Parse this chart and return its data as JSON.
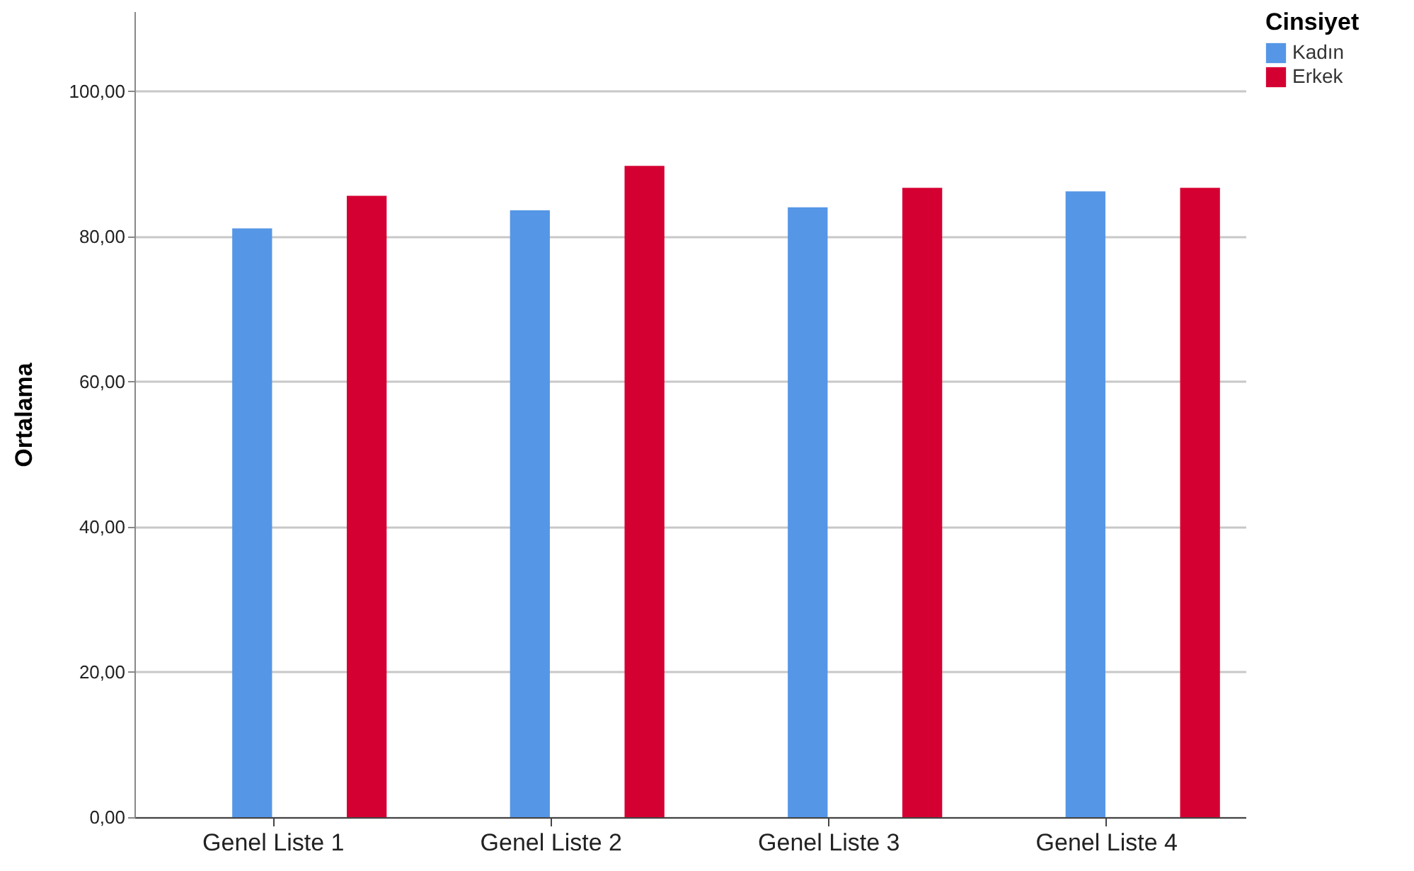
{
  "chart_data": {
    "type": "bar",
    "ylabel": "Ortalama",
    "legend_title": "Cinsiyet",
    "categories": [
      "Genel Liste 1",
      "Genel Liste 2",
      "Genel Liste 3",
      "Genel Liste 4"
    ],
    "series": [
      {
        "name": "Kadın",
        "color": "#5596e6",
        "values": [
          81.1,
          83.6,
          84.0,
          86.2
        ]
      },
      {
        "name": "Erkek",
        "color": "#d50032",
        "values": [
          85.6,
          89.7,
          86.7,
          86.7
        ]
      }
    ],
    "ylim": [
      0,
      111
    ],
    "yticks": [
      {
        "value": 0,
        "label": "0,00"
      },
      {
        "value": 20,
        "label": "20,00"
      },
      {
        "value": 40,
        "label": "40,00"
      },
      {
        "value": 60,
        "label": "60,00"
      },
      {
        "value": 80,
        "label": "80,00"
      },
      {
        "value": 100,
        "label": "100,00"
      }
    ],
    "grid": "y",
    "legend": "top right"
  }
}
